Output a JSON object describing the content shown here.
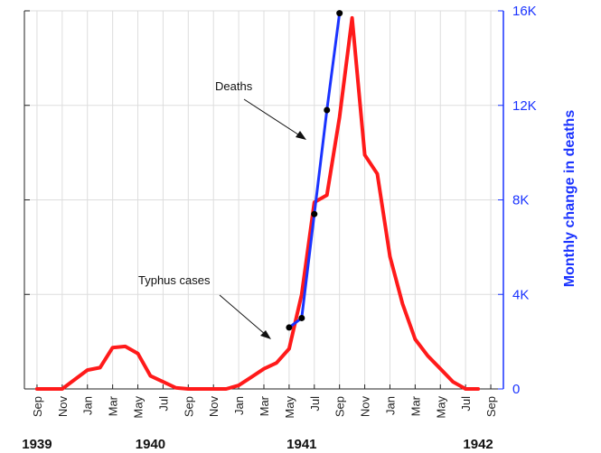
{
  "chart_data": {
    "type": "line",
    "ylabel": "Monthly change in deaths",
    "ylim": [
      0,
      16000
    ],
    "y_ticks": [
      "0",
      "4K",
      "8K",
      "12K",
      "16K"
    ],
    "y_tick_values": [
      0,
      4000,
      8000,
      12000,
      16000
    ],
    "x_tick_labels": [
      "Sep",
      "Nov",
      "Jan",
      "Mar",
      "May",
      "Jul",
      "Sep",
      "Nov",
      "Jan",
      "Mar",
      "May",
      "Jul",
      "Sep",
      "Nov",
      "Jan",
      "Mar",
      "May",
      "Jul",
      "Sep"
    ],
    "x_tick_months": [
      "1939-09",
      "1939-11",
      "1940-01",
      "1940-03",
      "1940-05",
      "1940-07",
      "1940-09",
      "1940-11",
      "1941-01",
      "1941-03",
      "1941-05",
      "1941-07",
      "1941-09",
      "1941-11",
      "1942-01",
      "1942-03",
      "1942-05",
      "1942-07",
      "1942-09"
    ],
    "year_labels": [
      {
        "label": "1939",
        "month": "1939-09"
      },
      {
        "label": "1940",
        "month": "1940-06"
      },
      {
        "label": "1941",
        "month": "1941-06"
      },
      {
        "label": "1942",
        "month": "1942-08"
      }
    ],
    "grid": true,
    "series": [
      {
        "label_text": "Typhus cases",
        "color": "#ff1a1a",
        "points": [
          [
            "1939-09",
            0
          ],
          [
            "1939-10",
            0
          ],
          [
            "1939-11",
            0
          ],
          [
            "1939-12",
            400
          ],
          [
            "1940-01",
            800
          ],
          [
            "1940-02",
            900
          ],
          [
            "1940-03",
            1750
          ],
          [
            "1940-04",
            1800
          ],
          [
            "1940-05",
            1500
          ],
          [
            "1940-06",
            550
          ],
          [
            "1940-07",
            300
          ],
          [
            "1940-08",
            50
          ],
          [
            "1940-09",
            0
          ],
          [
            "1940-10",
            0
          ],
          [
            "1940-11",
            0
          ],
          [
            "1940-12",
            0
          ],
          [
            "1941-01",
            150
          ],
          [
            "1941-02",
            500
          ],
          [
            "1941-03",
            850
          ],
          [
            "1941-04",
            1100
          ],
          [
            "1941-05",
            1700
          ],
          [
            "1941-06",
            4000
          ],
          [
            "1941-07",
            7900
          ],
          [
            "1941-08",
            8200
          ],
          [
            "1941-09",
            11500
          ],
          [
            "1941-10",
            15700
          ],
          [
            "1941-11",
            9900
          ],
          [
            "1941-12",
            9100
          ],
          [
            "1942-01",
            5600
          ],
          [
            "1942-02",
            3600
          ],
          [
            "1942-03",
            2100
          ],
          [
            "1942-04",
            1400
          ],
          [
            "1942-05",
            850
          ],
          [
            "1942-06",
            300
          ],
          [
            "1942-07",
            0
          ],
          [
            "1942-08",
            0
          ]
        ]
      },
      {
        "label_text": "Deaths",
        "color": "#1a33ff",
        "points": [
          [
            "1941-05",
            2600
          ],
          [
            "1941-06",
            3000
          ],
          [
            "1941-07",
            7400
          ],
          [
            "1941-08",
            11800
          ],
          [
            "1941-09",
            15900
          ]
        ]
      }
    ],
    "annotations": [
      "Deaths",
      "Typhus cases"
    ]
  }
}
